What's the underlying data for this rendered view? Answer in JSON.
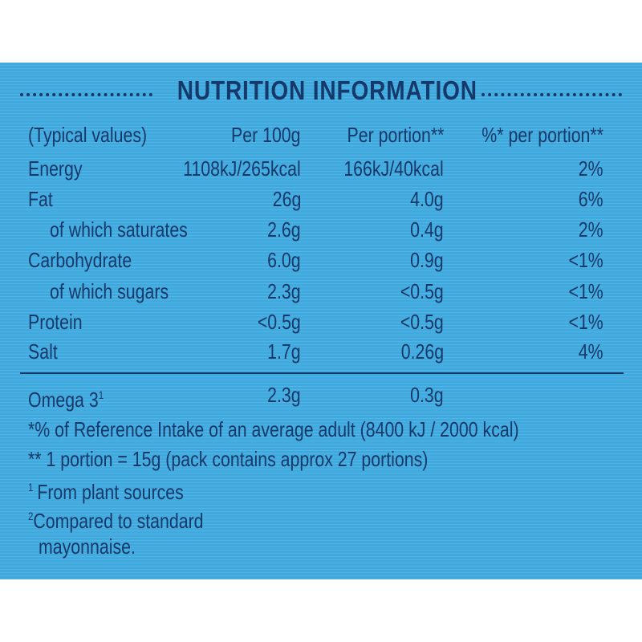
{
  "title": "NUTRITION INFORMATION",
  "table": {
    "header": [
      "(Typical values)",
      "Per 100g",
      "Per portion**",
      "%* per portion**"
    ],
    "rows": [
      [
        "Energy",
        "1108kJ/265kcal",
        "166kJ/40kcal",
        "2%"
      ],
      [
        "Fat",
        "26g",
        "4.0g",
        "6%"
      ],
      [
        "of which saturates",
        "2.6g",
        "0.4g",
        "2%"
      ],
      [
        "Carbohydrate",
        "6.0g",
        "0.9g",
        "<1%"
      ],
      [
        "of which sugars",
        "2.3g",
        "<0.5g",
        "<1%"
      ],
      [
        "Protein",
        "<0.5g",
        "<0.5g",
        "<1%"
      ],
      [
        "Salt",
        "1.7g",
        "0.26g",
        "4%"
      ]
    ],
    "extra_rows": [
      {
        "cells": [
          "Omega 3",
          "2.3g",
          "0.3g"
        ],
        "sup": "1"
      }
    ]
  },
  "footnotes": [
    {
      "text": "*% of Reference Intake of an average adult (8400 kJ / 2000 kcal)"
    },
    {
      "text": "** 1 portion = 15g (pack contains approx 27 portions)"
    },
    {
      "marker": "1",
      "text": "From plant sources"
    },
    {
      "marker": "2",
      "text": "Compared to standard",
      "continuation": "mayonnaise."
    }
  ]
}
